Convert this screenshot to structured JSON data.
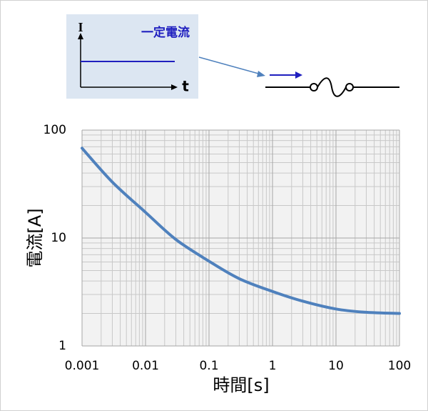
{
  "chart_data": {
    "type": "line",
    "inset": {
      "y_label": "I",
      "x_label": "t",
      "legend": "一定電流"
    },
    "x_label": "時間[s]",
    "y_label": "電流[A]",
    "x": [
      0.001,
      0.003,
      0.01,
      0.03,
      0.1,
      0.3,
      1,
      3,
      10,
      30,
      100
    ],
    "values": [
      68,
      33,
      17.3,
      9.7,
      6.1,
      4.2,
      3.2,
      2.6,
      2.2,
      2.05,
      2.0
    ],
    "color": "#4f81bd",
    "xlim": [
      0.001,
      100
    ],
    "xticks": [
      0.001,
      0.01,
      0.1,
      1,
      10,
      100
    ],
    "ylim": [
      1,
      100
    ],
    "yticks": [
      1,
      10,
      100
    ],
    "log_x": true,
    "log_y": true,
    "grid": true,
    "minor_grid": true
  }
}
